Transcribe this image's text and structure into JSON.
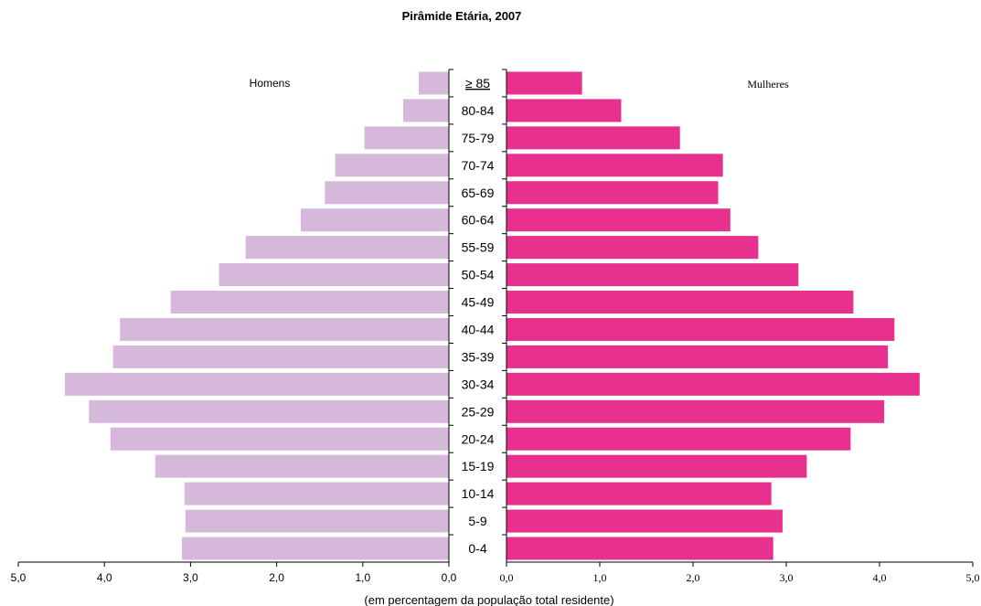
{
  "chart_data": {
    "type": "bar",
    "title": "Pirâmide Etária, 2007",
    "xlabel": "(em percentagem da população total residente)",
    "ylabel": "",
    "categories": [
      "≥ 85",
      "80-84",
      "75-79",
      "70-74",
      "65-69",
      "60-64",
      "55-59",
      "50-54",
      "45-49",
      "40-44",
      "35-39",
      "30-34",
      "25-29",
      "20-24",
      "15-19",
      "10-14",
      "5-9",
      "0-4"
    ],
    "series": [
      {
        "name": "Homens",
        "color": "#d5b8da",
        "values": [
          0.35,
          0.53,
          0.98,
          1.32,
          1.44,
          1.72,
          2.36,
          2.67,
          3.23,
          3.82,
          3.9,
          4.46,
          4.18,
          3.93,
          3.41,
          3.07,
          3.06,
          3.1
        ]
      },
      {
        "name": "Mulheres",
        "color": "#e8308f",
        "values": [
          0.81,
          1.23,
          1.86,
          2.32,
          2.27,
          2.4,
          2.7,
          3.13,
          3.72,
          4.16,
          4.09,
          4.43,
          4.05,
          3.69,
          3.22,
          2.84,
          2.96,
          2.86
        ]
      }
    ],
    "xlim": [
      0,
      5
    ],
    "ticks_left": [
      "5,0",
      "4,0",
      "3,0",
      "2,0",
      "1,0",
      "0,0"
    ],
    "ticks_right": [
      "0,0",
      "1,0",
      "2,0",
      "3,0",
      "4,0",
      "5,0"
    ],
    "legend_left": "Homens",
    "legend_right": "Mulheres"
  }
}
